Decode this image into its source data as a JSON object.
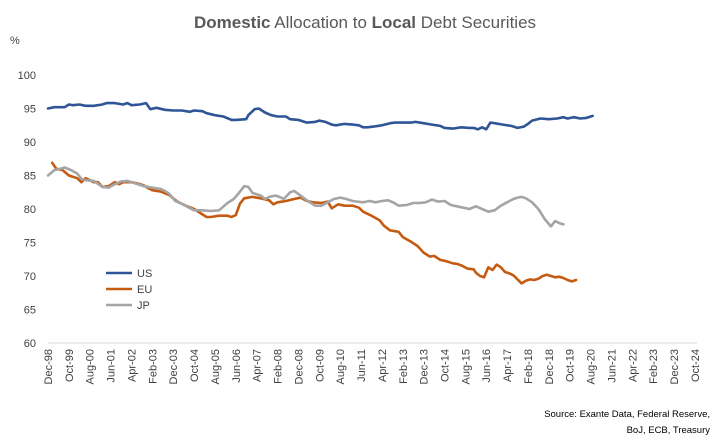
{
  "chart_data": {
    "type": "line",
    "title_parts": [
      "Domestic",
      " Allocation to ",
      "Local",
      " Debt Securities"
    ],
    "title": "Domestic Allocation to Local Debt Securities",
    "ylabel": "%",
    "ylim": [
      60,
      100
    ],
    "yticks": [
      60,
      65,
      70,
      75,
      80,
      85,
      90,
      95,
      100
    ],
    "x_range_months": [
      0,
      311
    ],
    "xticks": [
      {
        "label": "Dec-98",
        "m": 0
      },
      {
        "label": "Oct-99",
        "m": 10
      },
      {
        "label": "Aug-00",
        "m": 20
      },
      {
        "label": "Jun-01",
        "m": 30
      },
      {
        "label": "Apr-02",
        "m": 40
      },
      {
        "label": "Feb-03",
        "m": 50
      },
      {
        "label": "Dec-03",
        "m": 60
      },
      {
        "label": "Oct-04",
        "m": 70
      },
      {
        "label": "Aug-05",
        "m": 80
      },
      {
        "label": "Jun-06",
        "m": 90
      },
      {
        "label": "Apr-07",
        "m": 100
      },
      {
        "label": "Feb-08",
        "m": 110
      },
      {
        "label": "Dec-08",
        "m": 120
      },
      {
        "label": "Oct-09",
        "m": 130
      },
      {
        "label": "Aug-10",
        "m": 140
      },
      {
        "label": "Jun-11",
        "m": 150
      },
      {
        "label": "Apr-12",
        "m": 160
      },
      {
        "label": "Feb-13",
        "m": 170
      },
      {
        "label": "Dec-13",
        "m": 180
      },
      {
        "label": "Oct-14",
        "m": 190
      },
      {
        "label": "Aug-15",
        "m": 200
      },
      {
        "label": "Jun-16",
        "m": 210
      },
      {
        "label": "Apr-17",
        "m": 220
      },
      {
        "label": "Feb-18",
        "m": 230
      },
      {
        "label": "Dec-18",
        "m": 240
      },
      {
        "label": "Oct-19",
        "m": 250
      },
      {
        "label": "Aug-20",
        "m": 260
      },
      {
        "label": "Jun-21",
        "m": 270
      },
      {
        "label": "Apr-22",
        "m": 280
      },
      {
        "label": "Feb-23",
        "m": 290
      },
      {
        "label": "Dec-23",
        "m": 300
      },
      {
        "label": "Oct-24",
        "m": 310
      }
    ],
    "series": [
      {
        "name": "US",
        "color": "#2f5597",
        "points": [
          [
            0,
            95.0
          ],
          [
            3,
            95.2
          ],
          [
            8,
            95.2
          ],
          [
            10,
            95.6
          ],
          [
            12,
            95.5
          ],
          [
            15,
            95.6
          ],
          [
            18,
            95.4
          ],
          [
            22,
            95.4
          ],
          [
            26,
            95.6
          ],
          [
            28,
            95.8
          ],
          [
            32,
            95.8
          ],
          [
            36,
            95.6
          ],
          [
            38,
            95.8
          ],
          [
            40,
            95.5
          ],
          [
            44,
            95.6
          ],
          [
            47,
            95.8
          ],
          [
            49,
            94.9
          ],
          [
            52,
            95.1
          ],
          [
            56,
            94.8
          ],
          [
            60,
            94.7
          ],
          [
            64,
            94.7
          ],
          [
            68,
            94.5
          ],
          [
            70,
            94.7
          ],
          [
            74,
            94.6
          ],
          [
            76,
            94.3
          ],
          [
            80,
            94.0
          ],
          [
            84,
            93.8
          ],
          [
            88,
            93.3
          ],
          [
            90,
            93.3
          ],
          [
            95,
            93.4
          ],
          [
            96,
            94.0
          ],
          [
            99,
            94.9
          ],
          [
            101,
            95.0
          ],
          [
            104,
            94.4
          ],
          [
            107,
            94.0
          ],
          [
            110,
            93.8
          ],
          [
            114,
            93.8
          ],
          [
            116,
            93.4
          ],
          [
            120,
            93.3
          ],
          [
            124,
            92.9
          ],
          [
            128,
            93.0
          ],
          [
            130,
            93.2
          ],
          [
            133,
            93.0
          ],
          [
            136,
            92.6
          ],
          [
            138,
            92.5
          ],
          [
            142,
            92.7
          ],
          [
            146,
            92.6
          ],
          [
            149,
            92.5
          ],
          [
            151,
            92.2
          ],
          [
            153,
            92.2
          ],
          [
            156,
            92.3
          ],
          [
            160,
            92.5
          ],
          [
            164,
            92.8
          ],
          [
            166,
            92.9
          ],
          [
            170,
            92.9
          ],
          [
            174,
            92.9
          ],
          [
            176,
            93.0
          ],
          [
            180,
            92.8
          ],
          [
            184,
            92.6
          ],
          [
            188,
            92.4
          ],
          [
            190,
            92.1
          ],
          [
            194,
            92.0
          ],
          [
            198,
            92.2
          ],
          [
            202,
            92.1
          ],
          [
            204,
            92.1
          ],
          [
            206,
            91.9
          ],
          [
            208,
            92.2
          ],
          [
            210,
            91.9
          ],
          [
            212,
            92.9
          ],
          [
            214,
            92.8
          ],
          [
            218,
            92.6
          ],
          [
            222,
            92.4
          ],
          [
            225,
            92.1
          ],
          [
            228,
            92.3
          ],
          [
            230,
            92.7
          ],
          [
            232,
            93.2
          ],
          [
            236,
            93.5
          ],
          [
            240,
            93.4
          ],
          [
            244,
            93.5
          ],
          [
            247,
            93.7
          ],
          [
            249,
            93.5
          ],
          [
            252,
            93.7
          ],
          [
            255,
            93.5
          ],
          [
            258,
            93.6
          ],
          [
            261,
            93.9
          ]
        ]
      },
      {
        "name": "EU",
        "color": "#c55a11",
        "points": [
          [
            2,
            86.9
          ],
          [
            4,
            86.0
          ],
          [
            7,
            85.8
          ],
          [
            10,
            85.0
          ],
          [
            14,
            84.6
          ],
          [
            16,
            84.0
          ],
          [
            18,
            84.6
          ],
          [
            22,
            84.0
          ],
          [
            24,
            84.0
          ],
          [
            26,
            83.3
          ],
          [
            29,
            83.4
          ],
          [
            32,
            84.0
          ],
          [
            34,
            83.7
          ],
          [
            36,
            84.0
          ],
          [
            40,
            84.0
          ],
          [
            43,
            83.8
          ],
          [
            46,
            83.5
          ],
          [
            48,
            83.1
          ],
          [
            50,
            82.8
          ],
          [
            54,
            82.6
          ],
          [
            58,
            82.1
          ],
          [
            62,
            81.1
          ],
          [
            66,
            80.5
          ],
          [
            70,
            80.0
          ],
          [
            74,
            79.2
          ],
          [
            76,
            78.8
          ],
          [
            78,
            78.8
          ],
          [
            82,
            79.0
          ],
          [
            86,
            79.0
          ],
          [
            88,
            78.8
          ],
          [
            90,
            79.1
          ],
          [
            92,
            80.8
          ],
          [
            94,
            81.6
          ],
          [
            98,
            81.8
          ],
          [
            102,
            81.6
          ],
          [
            106,
            81.3
          ],
          [
            108,
            80.7
          ],
          [
            110,
            81.0
          ],
          [
            114,
            81.2
          ],
          [
            118,
            81.5
          ],
          [
            121,
            81.7
          ],
          [
            124,
            81.2
          ],
          [
            127,
            81.0
          ],
          [
            131,
            80.9
          ],
          [
            134,
            81.1
          ],
          [
            136,
            80.1
          ],
          [
            139,
            80.7
          ],
          [
            142,
            80.5
          ],
          [
            146,
            80.5
          ],
          [
            149,
            80.2
          ],
          [
            151,
            79.6
          ],
          [
            155,
            79.0
          ],
          [
            159,
            78.3
          ],
          [
            161,
            77.5
          ],
          [
            164,
            76.8
          ],
          [
            168,
            76.6
          ],
          [
            170,
            75.8
          ],
          [
            174,
            75.1
          ],
          [
            177,
            74.5
          ],
          [
            180,
            73.5
          ],
          [
            183,
            72.9
          ],
          [
            185,
            73.0
          ],
          [
            188,
            72.4
          ],
          [
            191,
            72.2
          ],
          [
            194,
            71.9
          ],
          [
            196,
            71.8
          ],
          [
            198,
            71.6
          ],
          [
            201,
            71.1
          ],
          [
            204,
            71.0
          ],
          [
            205,
            70.5
          ],
          [
            207,
            70.0
          ],
          [
            209,
            69.8
          ],
          [
            211,
            71.3
          ],
          [
            213,
            70.9
          ],
          [
            215,
            71.7
          ],
          [
            217,
            71.3
          ],
          [
            219,
            70.6
          ],
          [
            221,
            70.4
          ],
          [
            223,
            70.1
          ],
          [
            226,
            69.2
          ],
          [
            227,
            68.9
          ],
          [
            229,
            69.3
          ],
          [
            231,
            69.5
          ],
          [
            233,
            69.4
          ],
          [
            235,
            69.6
          ],
          [
            237,
            70.0
          ],
          [
            239,
            70.2
          ],
          [
            241,
            70.0
          ],
          [
            243,
            69.8
          ],
          [
            245,
            69.9
          ],
          [
            247,
            69.7
          ],
          [
            249,
            69.4
          ],
          [
            251,
            69.2
          ],
          [
            253,
            69.4
          ]
        ]
      },
      {
        "name": "JP",
        "color": "#a5a5a5",
        "points": [
          [
            0,
            85.0
          ],
          [
            3,
            85.8
          ],
          [
            6,
            86.0
          ],
          [
            8,
            86.2
          ],
          [
            11,
            85.8
          ],
          [
            14,
            85.3
          ],
          [
            16,
            84.5
          ],
          [
            18,
            84.3
          ],
          [
            22,
            84.2
          ],
          [
            26,
            83.3
          ],
          [
            29,
            83.2
          ],
          [
            32,
            83.7
          ],
          [
            35,
            84.1
          ],
          [
            38,
            84.2
          ],
          [
            42,
            83.8
          ],
          [
            46,
            83.4
          ],
          [
            50,
            83.2
          ],
          [
            54,
            83.0
          ],
          [
            56,
            82.7
          ],
          [
            58,
            82.3
          ],
          [
            61,
            81.2
          ],
          [
            64,
            80.8
          ],
          [
            67,
            80.3
          ],
          [
            70,
            79.8
          ],
          [
            74,
            79.8
          ],
          [
            78,
            79.7
          ],
          [
            82,
            79.8
          ],
          [
            86,
            80.9
          ],
          [
            89,
            81.5
          ],
          [
            91,
            82.2
          ],
          [
            94,
            83.4
          ],
          [
            96,
            83.3
          ],
          [
            98,
            82.4
          ],
          [
            102,
            82.0
          ],
          [
            104,
            81.5
          ],
          [
            106,
            81.8
          ],
          [
            109,
            82.0
          ],
          [
            111,
            81.8
          ],
          [
            113,
            81.5
          ],
          [
            116,
            82.5
          ],
          [
            118,
            82.7
          ],
          [
            121,
            82.0
          ],
          [
            124,
            81.3
          ],
          [
            128,
            80.5
          ],
          [
            131,
            80.5
          ],
          [
            134,
            81.0
          ],
          [
            137,
            81.5
          ],
          [
            140,
            81.7
          ],
          [
            143,
            81.5
          ],
          [
            146,
            81.2
          ],
          [
            148,
            81.1
          ],
          [
            151,
            81.0
          ],
          [
            154,
            81.2
          ],
          [
            157,
            81.0
          ],
          [
            160,
            81.2
          ],
          [
            163,
            81.3
          ],
          [
            166,
            80.9
          ],
          [
            168,
            80.5
          ],
          [
            172,
            80.6
          ],
          [
            175,
            80.9
          ],
          [
            178,
            80.9
          ],
          [
            181,
            81.0
          ],
          [
            184,
            81.4
          ],
          [
            187,
            81.1
          ],
          [
            190,
            81.2
          ],
          [
            193,
            80.6
          ],
          [
            196,
            80.4
          ],
          [
            199,
            80.2
          ],
          [
            202,
            80.0
          ],
          [
            205,
            80.4
          ],
          [
            208,
            80.0
          ],
          [
            211,
            79.6
          ],
          [
            214,
            79.8
          ],
          [
            217,
            80.5
          ],
          [
            220,
            81.0
          ],
          [
            223,
            81.5
          ],
          [
            225,
            81.7
          ],
          [
            227,
            81.8
          ],
          [
            229,
            81.6
          ],
          [
            232,
            81.0
          ],
          [
            235,
            80.0
          ],
          [
            238,
            78.5
          ],
          [
            241,
            77.4
          ],
          [
            243,
            78.2
          ],
          [
            245,
            77.9
          ],
          [
            247,
            77.7
          ]
        ]
      }
    ],
    "legend": [
      "US",
      "EU",
      "JP"
    ],
    "legend_position": "lower-left",
    "grid": false
  },
  "source_lines": [
    "Source: Exante Data, Federal Reserve,",
    "BoJ, ECB, Treasury"
  ]
}
